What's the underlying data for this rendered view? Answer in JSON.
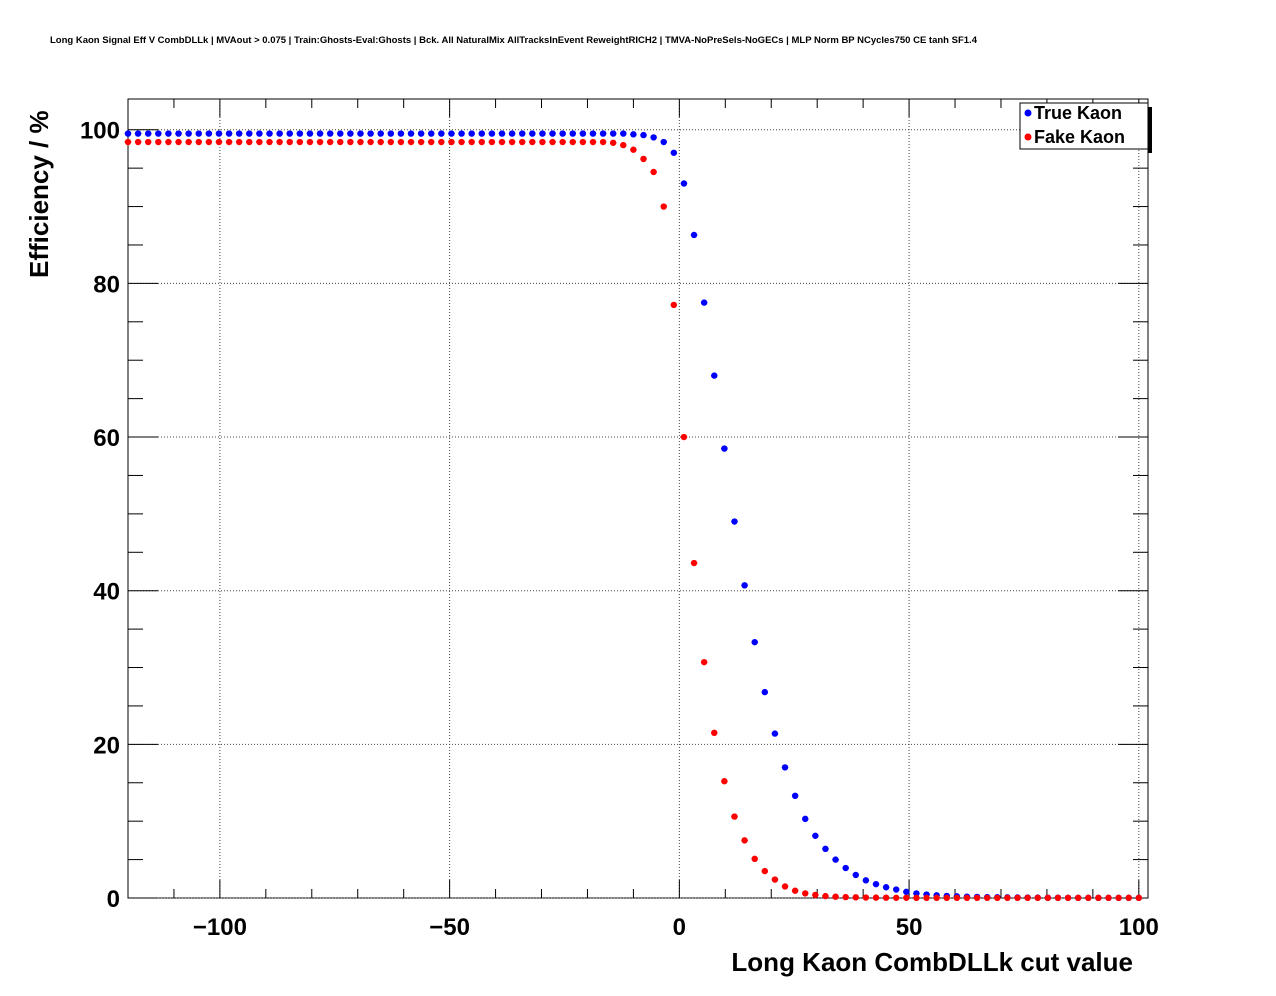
{
  "chart_data": {
    "type": "scatter",
    "title": "Long Kaon Signal Eff V CombDLLk | MVAout > 0.075 | Train:Ghosts-Eval:Ghosts | Bck. All NaturalMix AllTracksInEvent ReweightRICH2 | TMVA-NoPreSels-NoGECs | MLP Norm BP NCycles750 CE tanh SF1.4",
    "xlabel": "Long Kaon CombDLLk cut value",
    "ylabel": "Efficiency / %",
    "xlim": [
      -120,
      102
    ],
    "ylim": [
      0,
      104
    ],
    "x_ticks": [
      -100,
      -50,
      0,
      50,
      100
    ],
    "y_ticks": [
      0,
      20,
      40,
      60,
      80,
      100
    ],
    "x_tick_labels": [
      "−100",
      "−50",
      "0",
      "50",
      "100"
    ],
    "y_tick_labels": [
      "0",
      "20",
      "40",
      "60",
      "80",
      "100"
    ],
    "grid": true,
    "legend_position": "top-right",
    "x": [
      -120,
      -117.8,
      -115.6,
      -113.4,
      -111.2,
      -109,
      -106.8,
      -104.6,
      -102.4,
      -100.2,
      -98,
      -95.8,
      -93.6,
      -91.4,
      -89.2,
      -87,
      -84.8,
      -82.6,
      -80.4,
      -78.2,
      -76,
      -73.8,
      -71.6,
      -69.4,
      -67.2,
      -65,
      -62.8,
      -60.6,
      -58.4,
      -56.2,
      -54,
      -51.8,
      -49.6,
      -47.4,
      -45.2,
      -43,
      -40.8,
      -38.6,
      -36.4,
      -34.2,
      -32,
      -29.8,
      -27.6,
      -25.4,
      -23.2,
      -21,
      -18.8,
      -16.6,
      -14.4,
      -12.2,
      -10,
      -7.8,
      -5.6,
      -3.4,
      -1.2,
      1,
      3.2,
      5.4,
      7.6,
      9.8,
      12,
      14.2,
      16.4,
      18.6,
      20.8,
      23,
      25.2,
      27.4,
      29.6,
      31.8,
      34,
      36.2,
      38.4,
      40.6,
      42.8,
      45,
      47.2,
      49.4,
      51.6,
      53.8,
      56,
      58.2,
      60.4,
      62.6,
      64.8,
      67,
      69.2,
      71.4,
      73.6,
      75.8,
      78,
      80.2,
      82.4,
      84.6,
      86.8,
      89,
      91.2,
      93.4,
      95.6,
      97.8,
      100
    ],
    "series": [
      {
        "name": "True Kaon",
        "color": "#0000ff",
        "values": [
          99.5,
          99.5,
          99.5,
          99.5,
          99.5,
          99.5,
          99.5,
          99.5,
          99.5,
          99.5,
          99.5,
          99.5,
          99.5,
          99.5,
          99.5,
          99.5,
          99.5,
          99.5,
          99.5,
          99.5,
          99.5,
          99.5,
          99.5,
          99.5,
          99.5,
          99.5,
          99.5,
          99.5,
          99.5,
          99.5,
          99.5,
          99.5,
          99.5,
          99.5,
          99.5,
          99.5,
          99.5,
          99.5,
          99.5,
          99.5,
          99.5,
          99.5,
          99.5,
          99.5,
          99.5,
          99.5,
          99.5,
          99.5,
          99.5,
          99.5,
          99.4,
          99.3,
          99.0,
          98.4,
          97.0,
          93.0,
          86.3,
          77.5,
          68.0,
          58.5,
          49.0,
          40.7,
          33.3,
          26.8,
          21.4,
          17.0,
          13.3,
          10.3,
          8.1,
          6.4,
          5.0,
          3.9,
          3.0,
          2.3,
          1.8,
          1.4,
          1.1,
          0.8,
          0.6,
          0.45,
          0.35,
          0.27,
          0.21,
          0.17,
          0.14,
          0.12,
          0.1,
          0.08,
          0.07,
          0.06,
          0.05,
          0.04,
          0.04,
          0.03,
          0.03,
          0.02,
          0.02,
          0.02,
          0.02,
          0.02,
          0.02
        ]
      },
      {
        "name": "Fake Kaon",
        "color": "#ff0000",
        "values": [
          98.4,
          98.4,
          98.4,
          98.4,
          98.4,
          98.4,
          98.4,
          98.4,
          98.4,
          98.4,
          98.4,
          98.4,
          98.4,
          98.4,
          98.4,
          98.4,
          98.4,
          98.4,
          98.4,
          98.4,
          98.4,
          98.4,
          98.4,
          98.4,
          98.4,
          98.4,
          98.4,
          98.4,
          98.4,
          98.4,
          98.4,
          98.4,
          98.4,
          98.4,
          98.4,
          98.4,
          98.4,
          98.4,
          98.4,
          98.4,
          98.4,
          98.4,
          98.4,
          98.4,
          98.4,
          98.4,
          98.4,
          98.4,
          98.3,
          98.0,
          97.4,
          96.2,
          94.5,
          90.0,
          77.2,
          60.0,
          43.6,
          30.7,
          21.5,
          15.2,
          10.6,
          7.5,
          5.1,
          3.5,
          2.4,
          1.5,
          0.95,
          0.6,
          0.4,
          0.25,
          0.17,
          0.12,
          0.09,
          0.06,
          0.05,
          0.04,
          0.03,
          0.03,
          0.02,
          0.02,
          0.02,
          0.02,
          0.02,
          0.02,
          0.02,
          0.02,
          0.02,
          0.02,
          0.02,
          0.02,
          0.02,
          0.02,
          0.02,
          0.02,
          0.02,
          0.02,
          0.02,
          0.02,
          0.02,
          0.02,
          0.02
        ]
      }
    ]
  }
}
